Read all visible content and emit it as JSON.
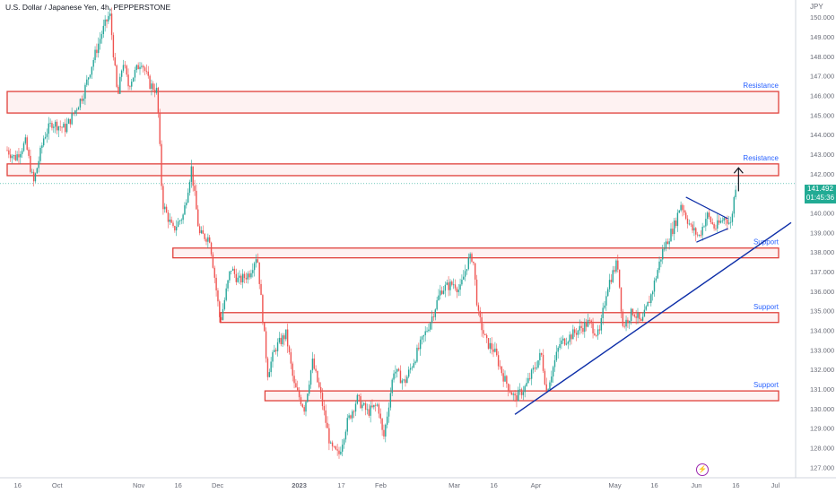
{
  "header": {
    "title": "U.S. Dollar / Japanese Yen, 4h, PEPPERSTONE",
    "currency": "JPY"
  },
  "last_price": {
    "value": "141.492",
    "countdown": "01:45:36"
  },
  "chart_data": {
    "type": "candlestick",
    "y_ticks": [
      "127.000",
      "128.000",
      "129.000",
      "130.000",
      "131.000",
      "132.000",
      "133.000",
      "134.000",
      "135.000",
      "136.000",
      "137.000",
      "138.000",
      "139.000",
      "140.000",
      "141.000",
      "142.000",
      "143.000",
      "144.000",
      "145.000",
      "146.000",
      "147.000",
      "148.000",
      "149.000",
      "150.000"
    ],
    "ylim": [
      126.6,
      150.6
    ],
    "x_ticks": [
      "16",
      "Oct",
      "Nov",
      "16",
      "Dec",
      "2023",
      "17",
      "Feb",
      "Mar",
      "16",
      "Apr",
      "May",
      "16",
      "Jun",
      "16",
      "Jul"
    ],
    "price_path": [
      [
        "Sep 12",
        143.2
      ],
      [
        "Sep 15",
        142.8
      ],
      [
        "Sep 19",
        143.6
      ],
      [
        "Sep 22",
        141.5
      ],
      [
        "Sep 26",
        143.9
      ],
      [
        "Sep 29",
        144.6
      ],
      [
        "Oct 4",
        144.3
      ],
      [
        "Oct 7",
        145.0
      ],
      [
        "Oct 11",
        146.1
      ],
      [
        "Oct 14",
        147.5
      ],
      [
        "Oct 18",
        149.2
      ],
      [
        "Oct 21",
        150.2
      ],
      [
        "Oct 24",
        145.8
      ],
      [
        "Oct 26",
        147.8
      ],
      [
        "Oct 28",
        146.5
      ],
      [
        "Nov 2",
        147.8
      ],
      [
        "Nov 5",
        146.6
      ],
      [
        "Nov 8",
        146.2
      ],
      [
        "Nov 10",
        140.5
      ],
      [
        "Nov 14",
        139.1
      ],
      [
        "Nov 18",
        139.9
      ],
      [
        "Nov 21",
        142.3
      ],
      [
        "Nov 24",
        138.9
      ],
      [
        "Nov 28",
        138.7
      ],
      [
        "Dec 1",
        135.5
      ],
      [
        "Dec 2",
        134.4
      ],
      [
        "Dec 6",
        137.2
      ],
      [
        "Dec 9",
        136.5
      ],
      [
        "Dec 13",
        136.9
      ],
      [
        "Dec 16",
        137.9
      ],
      [
        "Dec 20",
        131.8
      ],
      [
        "Dec 23",
        133.1
      ],
      [
        "Dec 27",
        133.8
      ],
      [
        "Dec 30",
        131.2
      ],
      [
        "Jan 3",
        130.0
      ],
      [
        "Jan 6",
        132.4
      ],
      [
        "Jan 9",
        130.8
      ],
      [
        "Jan 13",
        128.0
      ],
      [
        "Jan 16",
        127.6
      ],
      [
        "Jan 19",
        129.2
      ],
      [
        "Jan 23",
        130.5
      ],
      [
        "Jan 27",
        129.8
      ],
      [
        "Jan 31",
        130.2
      ],
      [
        "Feb 2",
        128.4
      ],
      [
        "Feb 6",
        132.0
      ],
      [
        "Feb 10",
        131.3
      ],
      [
        "Feb 14",
        132.6
      ],
      [
        "Feb 20",
        134.5
      ],
      [
        "Feb 24",
        136.1
      ],
      [
        "Mar 1",
        136.4
      ],
      [
        "Mar 3",
        136.0
      ],
      [
        "Mar 6",
        137.5
      ],
      [
        "Mar 8",
        137.8
      ],
      [
        "Mar 10",
        134.8
      ],
      [
        "Mar 13",
        133.4
      ],
      [
        "Mar 16",
        133.0
      ],
      [
        "Mar 20",
        131.5
      ],
      [
        "Mar 24",
        130.5
      ],
      [
        "Mar 28",
        131.1
      ],
      [
        "Apr 3",
        132.8
      ],
      [
        "Apr 5",
        130.9
      ],
      [
        "Apr 10",
        133.3
      ],
      [
        "Apr 17",
        134.0
      ],
      [
        "Apr 21",
        134.4
      ],
      [
        "Apr 25",
        133.7
      ],
      [
        "Apr 28",
        136.2
      ],
      [
        "May 2",
        137.5
      ],
      [
        "May 4",
        134.2
      ],
      [
        "May 8",
        135.0
      ],
      [
        "May 11",
        134.3
      ],
      [
        "May 15",
        135.9
      ],
      [
        "May 19",
        138.0
      ],
      [
        "May 24",
        139.5
      ],
      [
        "May 26",
        140.5
      ],
      [
        "May 30",
        139.2
      ],
      [
        "Jun 2",
        138.8
      ],
      [
        "Jun 5",
        139.9
      ],
      [
        "Jun 8",
        139.2
      ],
      [
        "Jun 12",
        139.8
      ],
      [
        "Jun 14",
        139.4
      ],
      [
        "Jun 16",
        141.5
      ]
    ],
    "zones": [
      {
        "label": "Resistance",
        "from": "Sep 12",
        "low": 145.1,
        "high": 146.2
      },
      {
        "label": "Resistance",
        "from": "Sep 12",
        "low": 141.9,
        "high": 142.5
      },
      {
        "label": "Support",
        "from": "Nov 14",
        "low": 137.7,
        "high": 138.2
      },
      {
        "label": "Support",
        "from": "Dec 2",
        "low": 134.4,
        "high": 134.9
      },
      {
        "label": "Support",
        "from": "Dec 19",
        "low": 130.4,
        "high": 130.9
      }
    ],
    "trendline": {
      "from": [
        "Mar 24",
        129.7
      ],
      "to": [
        "Jul 7",
        139.5
      ]
    },
    "pennant": {
      "upper": [
        [
          "May 28",
          140.8
        ],
        [
          "Jun 13",
          139.7
        ]
      ],
      "lower": [
        [
          "Jun 1",
          138.5
        ],
        [
          "Jun 13",
          139.2
        ]
      ]
    },
    "target_arrow": {
      "at": "Jun 17",
      "from": 141.1,
      "to": 142.3
    },
    "colors": {
      "up": "#26a69a",
      "down": "#ef5350",
      "zone_border": "#e0403a",
      "zone_fill": "#fde8e8",
      "zone_label": "#2962ff",
      "trendline": "#0d2ea8"
    }
  }
}
